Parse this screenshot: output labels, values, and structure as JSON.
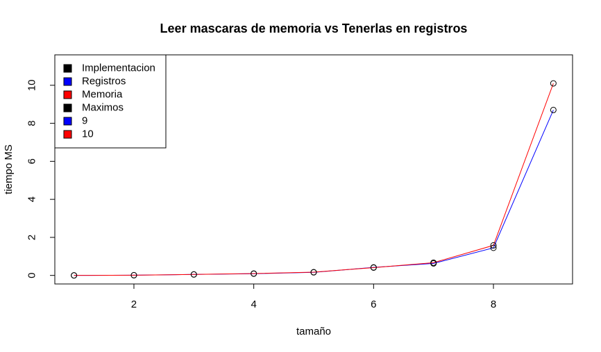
{
  "chart_data": {
    "type": "line",
    "title": "Leer mascaras de memoria vs Tenerlas en registros",
    "xlabel": "tamaño",
    "ylabel": "tiempo MS",
    "xlim": [
      0.68,
      9.32
    ],
    "ylim": [
      -0.45,
      11.6
    ],
    "xticks": [
      2,
      4,
      6,
      8
    ],
    "yticks": [
      0,
      2,
      4,
      6,
      8,
      10
    ],
    "x": [
      1,
      2,
      3,
      4,
      5,
      6,
      7,
      8,
      9
    ],
    "series": [
      {
        "name": "Registros",
        "color": "#0000ff",
        "marker": "open-circle",
        "values": [
          0.0,
          0.01,
          0.05,
          0.09,
          0.16,
          0.42,
          0.63,
          1.45,
          8.7
        ]
      },
      {
        "name": "Memoria",
        "color": "#ff0000",
        "marker": "open-circle",
        "values": [
          0.0,
          0.01,
          0.05,
          0.1,
          0.17,
          0.41,
          0.67,
          1.58,
          10.1
        ]
      }
    ],
    "legend": {
      "position": "top-left",
      "entries": [
        {
          "label": "Implementacion",
          "color": "#000000"
        },
        {
          "label": "Registros",
          "color": "#0000ff"
        },
        {
          "label": "Memoria",
          "color": "#ff0000"
        },
        {
          "label": "Maximos",
          "color": "#000000"
        },
        {
          "label": "9",
          "color": "#0000ff"
        },
        {
          "label": "10",
          "color": "#ff0000"
        }
      ]
    },
    "grid": false
  }
}
